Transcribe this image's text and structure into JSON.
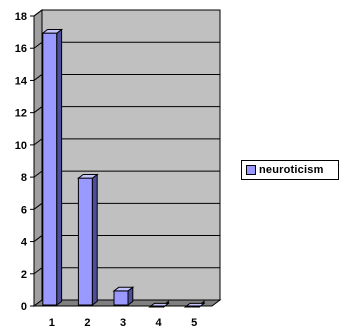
{
  "chart_data": {
    "type": "bar",
    "categories": [
      "1",
      "2",
      "3",
      "4",
      "5"
    ],
    "series": [
      {
        "name": "neuroticism",
        "values": [
          17,
          8,
          1,
          0,
          0
        ]
      }
    ],
    "ylim": [
      0,
      18
    ],
    "yticks": [
      "0",
      "2",
      "4",
      "6",
      "8",
      "10",
      "12",
      "14",
      "16",
      "18"
    ],
    "grid": true,
    "legend_position": "right",
    "colors": {
      "bar_face": "#9999ff",
      "bar_side": "#4d4d99",
      "bar_top": "#c4c4ff",
      "plot_bg": "#c0c0c0",
      "floor": "#808080",
      "gridline": "#000000"
    }
  }
}
